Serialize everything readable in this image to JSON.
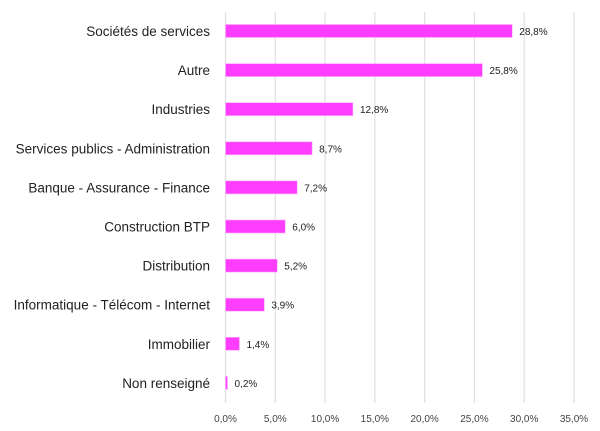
{
  "chart_data": {
    "type": "bar",
    "orientation": "horizontal",
    "categories": [
      "Sociétés de services",
      "Autre",
      "Industries",
      "Services publics - Administration",
      "Banque - Assurance - Finance",
      "Construction BTP",
      "Distribution",
      "Informatique - Télécom - Internet",
      "Immobilier",
      "Non renseigné"
    ],
    "values": [
      28.8,
      25.8,
      12.8,
      8.7,
      7.2,
      6.0,
      5.2,
      3.9,
      1.4,
      0.2
    ],
    "value_labels": [
      "28,8%",
      "25,8%",
      "12,8%",
      "8,7%",
      "7,2%",
      "6,0%",
      "5,2%",
      "3,9%",
      "1,4%",
      "0,2%"
    ],
    "xlim": [
      0,
      35
    ],
    "x_ticks": [
      0,
      5,
      10,
      15,
      20,
      25,
      30,
      35
    ],
    "x_tick_labels": [
      "0,0%",
      "5,0%",
      "10,0%",
      "15,0%",
      "20,0%",
      "25,0%",
      "30,0%",
      "35,0%"
    ],
    "grid": "vertical",
    "bar_color": "#ff3dff",
    "grid_color": "#e0e0e0"
  }
}
